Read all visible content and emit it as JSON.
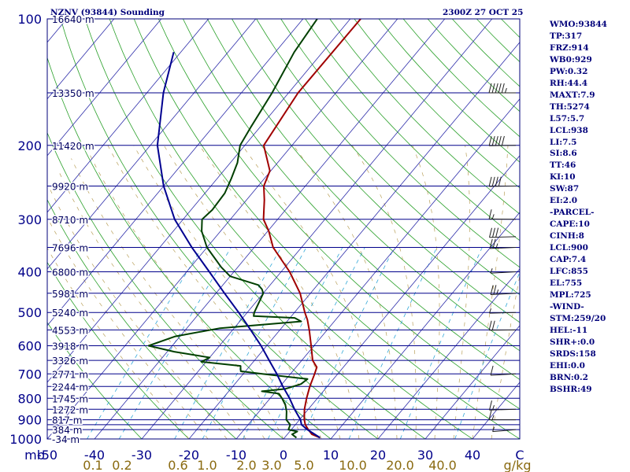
{
  "chart_data": {
    "type": "line",
    "title": "NZNV (93844) Sounding",
    "timestamp": "2300Z 27 OCT 25",
    "yaxis_label": "mb",
    "pressure_levels": [
      100,
      200,
      300,
      400,
      500,
      600,
      700,
      800,
      900,
      1000
    ],
    "extra_isobars": [
      150,
      250,
      350,
      450,
      550,
      650,
      750,
      850,
      925,
      950
    ],
    "temp_ticks": [
      -50,
      -40,
      -30,
      -20,
      -10,
      0,
      10,
      20,
      30,
      40
    ],
    "temp_unit": "C",
    "mixing_ratio_labels": [
      "0.1",
      "0.2",
      "0.6",
      "1.0",
      "2.0",
      "3.0",
      "5.0",
      "10.0",
      "20.0",
      "40.0"
    ],
    "mixing_ratio_unit": "g/kg",
    "height_labels": [
      {
        "p": 100,
        "label": "16640 m"
      },
      {
        "p": 150,
        "label": "13350 m"
      },
      {
        "p": 200,
        "label": "11420 m"
      },
      {
        "p": 250,
        "label": "9920 m"
      },
      {
        "p": 300,
        "label": "8710 m"
      },
      {
        "p": 350,
        "label": "7696 m"
      },
      {
        "p": 400,
        "label": "6800 m"
      },
      {
        "p": 450,
        "label": "5981 m"
      },
      {
        "p": 500,
        "label": "5240 m"
      },
      {
        "p": 550,
        "label": "4553 m"
      },
      {
        "p": 600,
        "label": "3918 m"
      },
      {
        "p": 650,
        "label": "3326 m"
      },
      {
        "p": 700,
        "label": "2771 m"
      },
      {
        "p": 750,
        "label": "2244 m"
      },
      {
        "p": 800,
        "label": "1745 m"
      },
      {
        "p": 850,
        "label": "1272 m"
      },
      {
        "p": 900,
        "label": "817 m"
      },
      {
        "p": 950,
        "label": "384 m"
      },
      {
        "p": 1000,
        "label": "-34 m"
      }
    ],
    "series": [
      {
        "name": "temperature",
        "color": "#a00000",
        "points": [
          [
            993,
            7.5
          ],
          [
            975,
            5.2
          ],
          [
            950,
            3.6
          ],
          [
            925,
            2.1
          ],
          [
            900,
            1.0
          ],
          [
            850,
            -0.8
          ],
          [
            800,
            -2.3
          ],
          [
            750,
            -3.7
          ],
          [
            700,
            -4.9
          ],
          [
            675,
            -5.6
          ],
          [
            650,
            -7.7
          ],
          [
            600,
            -10.6
          ],
          [
            550,
            -13.8
          ],
          [
            520,
            -16.0
          ],
          [
            500,
            -17.8
          ],
          [
            450,
            -22.2
          ],
          [
            400,
            -28.2
          ],
          [
            350,
            -36.0
          ],
          [
            320,
            -39.8
          ],
          [
            300,
            -43.0
          ],
          [
            270,
            -46.2
          ],
          [
            250,
            -48.8
          ],
          [
            230,
            -50.2
          ],
          [
            200,
            -56.0
          ],
          [
            150,
            -58.0
          ],
          [
            100,
            -57.8
          ]
        ]
      },
      {
        "name": "dewpoint",
        "color": "#003f00",
        "points": [
          [
            993,
            2.5
          ],
          [
            975,
            1.0
          ],
          [
            960,
            1.6
          ],
          [
            950,
            -0.6
          ],
          [
            925,
            -1.1
          ],
          [
            900,
            -2.8
          ],
          [
            860,
            -4.2
          ],
          [
            830,
            -5.6
          ],
          [
            800,
            -7.5
          ],
          [
            780,
            -9.0
          ],
          [
            770,
            -13.0
          ],
          [
            760,
            -8.5
          ],
          [
            740,
            -6.0
          ],
          [
            720,
            -5.5
          ],
          [
            700,
            -16.0
          ],
          [
            690,
            -21.0
          ],
          [
            670,
            -22.0
          ],
          [
            655,
            -31.0
          ],
          [
            640,
            -30.0
          ],
          [
            620,
            -38.5
          ],
          [
            600,
            -45.0
          ],
          [
            570,
            -41.0
          ],
          [
            545,
            -33.0
          ],
          [
            525,
            -17.0
          ],
          [
            515,
            -19.0
          ],
          [
            510,
            -28.0
          ],
          [
            500,
            -28.5
          ],
          [
            450,
            -30.0
          ],
          [
            440,
            -31.0
          ],
          [
            430,
            -32.5
          ],
          [
            410,
            -40.0
          ],
          [
            390,
            -43.5
          ],
          [
            350,
            -50.0
          ],
          [
            320,
            -54.0
          ],
          [
            300,
            -56.0
          ],
          [
            285,
            -55.5
          ],
          [
            260,
            -55.8
          ],
          [
            240,
            -57.0
          ],
          [
            220,
            -58.5
          ],
          [
            200,
            -61.0
          ],
          [
            180,
            -62.0
          ],
          [
            150,
            -63.5
          ],
          [
            120,
            -66.0
          ],
          [
            100,
            -67.0
          ]
        ]
      },
      {
        "name": "parcel",
        "color": "#000090",
        "points": [
          [
            993,
            7.5
          ],
          [
            950,
            3.4
          ],
          [
            925,
            1.3
          ],
          [
            900,
            0.2
          ],
          [
            850,
            -2.9
          ],
          [
            800,
            -5.9
          ],
          [
            750,
            -9.4
          ],
          [
            700,
            -12.9
          ],
          [
            650,
            -16.9
          ],
          [
            600,
            -21.2
          ],
          [
            550,
            -26.2
          ],
          [
            500,
            -31.8
          ],
          [
            450,
            -38.2
          ],
          [
            400,
            -45.2
          ],
          [
            350,
            -53.2
          ],
          [
            300,
            -61.8
          ],
          [
            250,
            -70.0
          ],
          [
            200,
            -78.5
          ],
          [
            150,
            -86.5
          ],
          [
            120,
            -91.5
          ]
        ]
      }
    ],
    "wind_barbs": [
      {
        "p": 150,
        "dir": 270,
        "spd": 55
      },
      {
        "p": 200,
        "dir": 265,
        "spd": 50
      },
      {
        "p": 250,
        "dir": 265,
        "spd": 40
      },
      {
        "p": 300,
        "dir": 275,
        "spd": 15
      },
      {
        "p": 330,
        "dir": 260,
        "spd": 30
      },
      {
        "p": 350,
        "dir": 255,
        "spd": 25
      },
      {
        "p": 400,
        "dir": 250,
        "spd": 5
      },
      {
        "p": 450,
        "dir": 250,
        "spd": 25
      },
      {
        "p": 500,
        "dir": 260,
        "spd": 5
      },
      {
        "p": 550,
        "dir": 265,
        "spd": 20
      },
      {
        "p": 700,
        "dir": 250,
        "spd": 10
      },
      {
        "p": 850,
        "dir": 260,
        "spd": 15
      },
      {
        "p": 900,
        "dir": 270,
        "spd": 15
      },
      {
        "p": 950,
        "dir": 240,
        "spd": 5
      }
    ]
  },
  "header": {
    "title": "NZNV (93844) Sounding",
    "timestamp": "2300Z 27 OCT 25"
  },
  "indices": [
    "WMO:93844",
    "TP:317",
    "FRZ:914",
    "WB0:929",
    "PW:0.32",
    "RH:44.4",
    "MAXT:7.9",
    "TH:5274",
    "L57:5.7",
    "LCL:938",
    "LI:7.5",
    "SI:8.6",
    "TT:46",
    "KI:10",
    "SW:87",
    "EI:2.0",
    "-PARCEL-",
    "CAPE:10",
    "CINH:8",
    "LCL:900",
    "CAP:7.4",
    "LFC:855",
    "EL:755",
    "MPL:725",
    "-WIND-",
    "STM:259/20",
    "HEL:-11",
    "SHR+:0.0",
    "SRDS:158",
    "EHI:0.0",
    "BRN:0.2",
    "BSHR:49"
  ],
  "colors": {
    "isobar": "#00008a",
    "isotherm": "#2d2daa",
    "dry_adiabat": "#2aa02a",
    "moist_adiabat": "#b9a05a",
    "mixing_ratio": "#33a8d8",
    "axis_text": "#00008a",
    "mixing_text": "#8a6a10",
    "background": "#ffffff"
  }
}
